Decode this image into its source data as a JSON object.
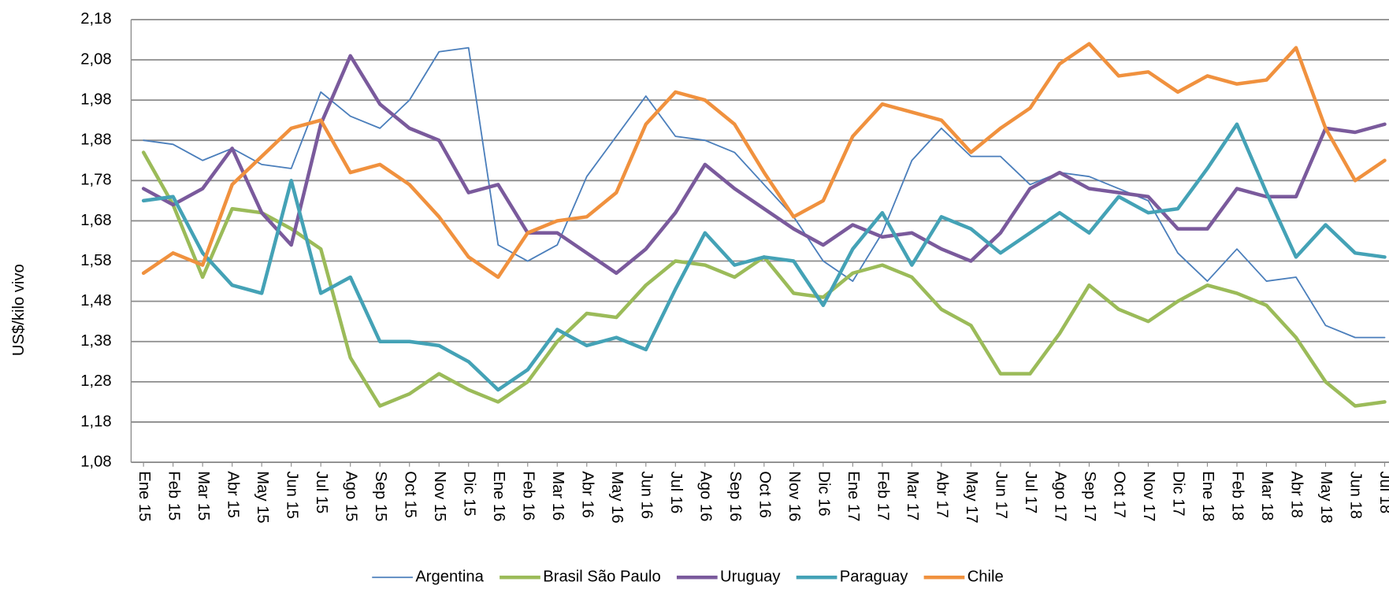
{
  "chart_data": {
    "type": "line",
    "y_label": "US$/kilo vivo",
    "categories": [
      "Ene 15",
      "Feb 15",
      "Mar 15",
      "Abr 15",
      "May 15",
      "Jun 15",
      "Jul 15",
      "Ago 15",
      "Sep 15",
      "Oct 15",
      "Nov 15",
      "Dic 15",
      "Ene 16",
      "Feb 16",
      "Mar 16",
      "Abr 16",
      "May 16",
      "Jun 16",
      "Jul 16",
      "Ago 16",
      "Sep 16",
      "Oct 16",
      "Nov 16",
      "Dic 16",
      "Ene 17",
      "Feb 17",
      "Mar 17",
      "Abr 17",
      "May 17",
      "Jun 17",
      "Jul 17",
      "Ago 17",
      "Sep 17",
      "Oct 17",
      "Nov 17",
      "Dic 17",
      "Ene 18",
      "Feb 18",
      "Mar 18",
      "Abr 18",
      "May 18",
      "Jun 18",
      "Jul 18"
    ],
    "series": [
      {
        "name": "Argentina",
        "color": "#4a7ebb",
        "width": 1.6,
        "values": [
          1.88,
          1.87,
          1.83,
          1.86,
          1.82,
          1.81,
          2.0,
          1.94,
          1.91,
          1.98,
          2.1,
          2.11,
          1.62,
          1.58,
          1.62,
          1.79,
          1.89,
          1.99,
          1.89,
          1.88,
          1.85,
          1.77,
          1.69,
          1.58,
          1.53,
          1.65,
          1.83,
          1.91,
          1.84,
          1.84,
          1.77,
          1.8,
          1.79,
          1.76,
          1.73,
          1.6,
          1.53,
          1.61,
          1.53,
          1.54,
          1.42,
          1.39,
          1.39
        ]
      },
      {
        "name": "Brasil São Paulo",
        "color": "#9bbb59",
        "width": 4,
        "values": [
          1.85,
          1.72,
          1.54,
          1.71,
          1.7,
          1.66,
          1.61,
          1.34,
          1.22,
          1.25,
          1.3,
          1.26,
          1.23,
          1.28,
          1.38,
          1.45,
          1.44,
          1.52,
          1.58,
          1.57,
          1.54,
          1.59,
          1.5,
          1.49,
          1.55,
          1.57,
          1.54,
          1.46,
          1.42,
          1.3,
          1.3,
          1.4,
          1.52,
          1.46,
          1.43,
          1.48,
          1.52,
          1.5,
          1.47,
          1.39,
          1.28,
          1.22,
          1.23
        ]
      },
      {
        "name": "Uruguay",
        "color": "#7a5a9c",
        "width": 4,
        "values": [
          1.76,
          1.72,
          1.76,
          1.86,
          1.7,
          1.62,
          1.92,
          2.09,
          1.97,
          1.91,
          1.88,
          1.75,
          1.77,
          1.65,
          1.65,
          1.6,
          1.55,
          1.61,
          1.7,
          1.82,
          1.76,
          1.71,
          1.66,
          1.62,
          1.67,
          1.64,
          1.65,
          1.61,
          1.58,
          1.65,
          1.76,
          1.8,
          1.76,
          1.75,
          1.74,
          1.66,
          1.66,
          1.76,
          1.74,
          1.74,
          1.91,
          1.9,
          1.92
        ]
      },
      {
        "name": "Paraguay",
        "color": "#44a2b6",
        "width": 4,
        "values": [
          1.73,
          1.74,
          1.6,
          1.52,
          1.5,
          1.78,
          1.5,
          1.54,
          1.38,
          1.38,
          1.37,
          1.33,
          1.26,
          1.31,
          1.41,
          1.37,
          1.39,
          1.36,
          1.51,
          1.65,
          1.57,
          1.59,
          1.58,
          1.47,
          1.61,
          1.7,
          1.57,
          1.69,
          1.66,
          1.6,
          1.65,
          1.7,
          1.65,
          1.74,
          1.7,
          1.71,
          1.81,
          1.92,
          1.75,
          1.59,
          1.67,
          1.6,
          1.59
        ]
      },
      {
        "name": "Chile",
        "color": "#f0913e",
        "width": 4,
        "values": [
          1.55,
          1.6,
          1.57,
          1.77,
          1.84,
          1.91,
          1.93,
          1.8,
          1.82,
          1.77,
          1.69,
          1.59,
          1.54,
          1.65,
          1.68,
          1.69,
          1.75,
          1.92,
          2.0,
          1.98,
          1.92,
          1.8,
          1.69,
          1.73,
          1.89,
          1.97,
          1.95,
          1.93,
          1.85,
          1.91,
          1.96,
          2.07,
          2.12,
          2.04,
          2.05,
          2.0,
          2.04,
          2.02,
          2.03,
          2.11,
          1.91,
          1.78,
          1.83
        ]
      }
    ],
    "ylim": [
      1.08,
      2.18
    ],
    "yticks": [
      {
        "value": 1.08,
        "label": "1,08"
      },
      {
        "value": 1.18,
        "label": "1,18"
      },
      {
        "value": 1.28,
        "label": "1,28"
      },
      {
        "value": 1.38,
        "label": "1,38"
      },
      {
        "value": 1.48,
        "label": "1,48"
      },
      {
        "value": 1.58,
        "label": "1,58"
      },
      {
        "value": 1.68,
        "label": "1,68"
      },
      {
        "value": 1.78,
        "label": "1,78"
      },
      {
        "value": 1.88,
        "label": "1,88"
      },
      {
        "value": 1.98,
        "label": "1,98"
      },
      {
        "value": 2.08,
        "label": "2,08"
      },
      {
        "value": 2.18,
        "label": "2,18"
      }
    ],
    "grid": true,
    "legend": "bottom"
  }
}
